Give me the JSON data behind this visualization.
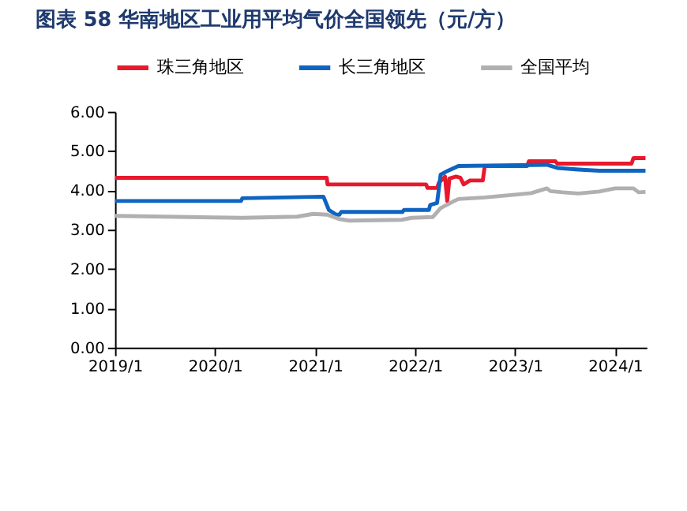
{
  "chart_data": {
    "type": "line",
    "title": "图表 58   华南地区工业用平均气价全国领先（元/方）",
    "xlim": [
      "2019-01-01",
      "2024-04-25"
    ],
    "xticks": [
      {
        "value": "2019-01-01",
        "label": "2019/1"
      },
      {
        "value": "2020-01-01",
        "label": "2020/1"
      },
      {
        "value": "2021-01-01",
        "label": "2021/1"
      },
      {
        "value": "2022-01-01",
        "label": "2022/1"
      },
      {
        "value": "2023-01-01",
        "label": "2023/1"
      },
      {
        "value": "2024-01-01",
        "label": "2024/1"
      }
    ],
    "ylim": [
      0,
      6
    ],
    "yticks": [
      {
        "value": 0,
        "label": "0.00"
      },
      {
        "value": 1,
        "label": "1.00"
      },
      {
        "value": 2,
        "label": "2.00"
      },
      {
        "value": 3,
        "label": "3.00"
      },
      {
        "value": 4,
        "label": "4.00"
      },
      {
        "value": 5,
        "label": "5.00"
      },
      {
        "value": 6,
        "label": "6.00"
      }
    ],
    "grid": false,
    "legend": "top",
    "line_style": "solid",
    "marker": "none",
    "series": [
      {
        "name": "珠三角地区",
        "color": "#e8192c",
        "x": [
          "2019-01-01",
          "2021-02-12",
          "2021-02-15",
          "2022-02-10",
          "2022-02-15",
          "2022-03-22",
          "2022-03-29",
          "2022-04-20",
          "2022-04-28",
          "2022-05-06",
          "2022-05-30",
          "2022-06-15",
          "2022-06-27",
          "2022-07-20",
          "2022-07-26",
          "2022-09-05",
          "2022-09-12",
          "2023-02-14",
          "2023-02-20",
          "2023-05-28",
          "2023-06-04",
          "2024-03-01",
          "2024-03-08",
          "2024-04-21"
        ],
        "values": [
          4.32,
          4.32,
          4.15,
          4.15,
          4.06,
          4.06,
          4.2,
          4.35,
          3.73,
          4.3,
          4.35,
          4.32,
          4.15,
          4.25,
          4.25,
          4.25,
          4.62,
          4.62,
          4.74,
          4.74,
          4.68,
          4.68,
          4.82,
          4.82
        ]
      },
      {
        "name": "长三角地区",
        "color": "#0f64c0",
        "x": [
          "2019-01-01",
          "2020-04-05",
          "2020-04-10",
          "2021-01-31",
          "2021-02-20",
          "2021-03-19",
          "2021-03-30",
          "2021-04-06",
          "2021-11-15",
          "2021-11-21",
          "2022-02-20",
          "2022-02-25",
          "2022-03-22",
          "2022-04-04",
          "2022-05-01",
          "2022-06-08",
          "2023-04-27",
          "2023-06-04",
          "2023-08-20",
          "2023-11-04",
          "2024-04-21"
        ],
        "values": [
          3.73,
          3.73,
          3.8,
          3.84,
          3.5,
          3.38,
          3.38,
          3.45,
          3.45,
          3.5,
          3.5,
          3.63,
          3.68,
          4.4,
          4.5,
          4.62,
          4.65,
          4.57,
          4.53,
          4.5,
          4.5
        ]
      },
      {
        "name": "全国平均",
        "color": "#b0b0b0",
        "x": [
          "2019-01-01",
          "2020-04-10",
          "2020-10-27",
          "2020-12-25",
          "2021-02-14",
          "2021-03-29",
          "2021-05-05",
          "2021-11-12",
          "2021-12-19",
          "2022-03-06",
          "2022-04-04",
          "2022-05-21",
          "2022-06-08",
          "2022-09-12",
          "2022-12-16",
          "2023-03-01",
          "2023-04-27",
          "2023-05-10",
          "2023-06-23",
          "2023-08-20",
          "2023-11-04",
          "2024-01-01",
          "2024-03-08",
          "2024-03-27",
          "2024-04-21"
        ],
        "values": [
          3.35,
          3.3,
          3.33,
          3.4,
          3.38,
          3.27,
          3.23,
          3.25,
          3.3,
          3.32,
          3.55,
          3.72,
          3.78,
          3.82,
          3.88,
          3.93,
          4.05,
          3.98,
          3.95,
          3.92,
          3.97,
          4.05,
          4.05,
          3.95,
          3.96
        ]
      }
    ]
  }
}
